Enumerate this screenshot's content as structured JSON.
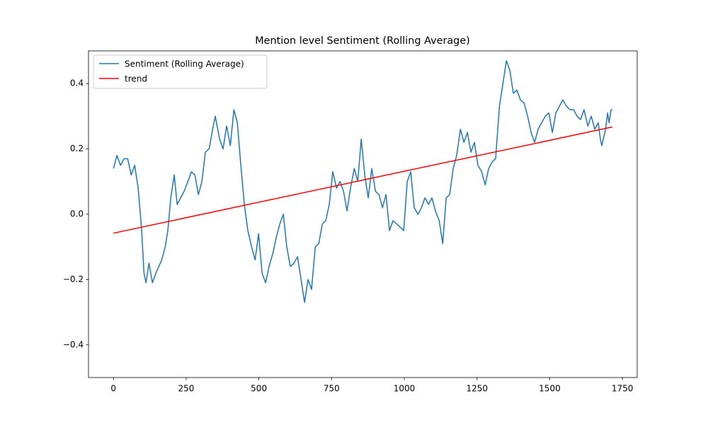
{
  "chart_data": {
    "type": "line",
    "title": "Mention level Sentiment (Rolling Average)",
    "series": [
      {
        "name": "Sentiment (Rolling Average)",
        "color": "#1f77b4",
        "x": [
          0,
          12,
          24,
          37,
          49,
          61,
          73,
          85,
          97,
          105,
          112,
          122,
          134,
          146,
          166,
          178,
          187,
          197,
          209,
          219,
          231,
          243,
          256,
          268,
          280,
          292,
          304,
          316,
          329,
          341,
          350,
          365,
          377,
          389,
          402,
          414,
          426,
          438,
          450,
          462,
          475,
          487,
          499,
          511,
          523,
          535,
          548,
          560,
          572,
          584,
          596,
          608,
          621,
          633,
          645,
          657,
          669,
          681,
          694,
          706,
          718,
          730,
          742,
          754,
          767,
          779,
          791,
          803,
          815,
          828,
          840,
          852,
          864,
          876,
          888,
          901,
          913,
          925,
          937,
          949,
          961,
          974,
          986,
          998,
          1010,
          1022,
          1034,
          1047,
          1059,
          1071,
          1083,
          1095,
          1107,
          1120,
          1132,
          1144,
          1156,
          1168,
          1180,
          1193,
          1205,
          1217,
          1229,
          1241,
          1253,
          1266,
          1278,
          1290,
          1302,
          1314,
          1327,
          1339,
          1351,
          1363,
          1375,
          1387,
          1399,
          1412,
          1424,
          1436,
          1448,
          1460,
          1472,
          1485,
          1497,
          1509,
          1521,
          1533,
          1545,
          1558,
          1570,
          1582,
          1594,
          1606,
          1618,
          1631,
          1643,
          1655,
          1667,
          1674,
          1679,
          1692,
          1699,
          1704,
          1711,
          1715
        ],
        "values": [
          0.14,
          0.18,
          0.15,
          0.17,
          0.17,
          0.12,
          0.15,
          0.08,
          -0.05,
          -0.18,
          -0.21,
          -0.15,
          -0.21,
          -0.18,
          -0.14,
          -0.1,
          -0.05,
          0.05,
          0.12,
          0.03,
          0.05,
          0.07,
          0.1,
          0.13,
          0.12,
          0.06,
          0.1,
          0.19,
          0.2,
          0.26,
          0.3,
          0.23,
          0.2,
          0.27,
          0.21,
          0.32,
          0.28,
          0.15,
          0.03,
          -0.05,
          -0.1,
          -0.14,
          -0.06,
          -0.18,
          -0.21,
          -0.16,
          -0.12,
          -0.07,
          -0.03,
          0.0,
          -0.1,
          -0.16,
          -0.15,
          -0.13,
          -0.2,
          -0.27,
          -0.2,
          -0.23,
          -0.1,
          -0.09,
          -0.03,
          -0.02,
          0.03,
          0.13,
          0.08,
          0.1,
          0.07,
          0.01,
          0.08,
          0.14,
          0.1,
          0.23,
          0.12,
          0.05,
          0.14,
          0.07,
          0.06,
          0.02,
          0.06,
          -0.05,
          -0.02,
          -0.03,
          -0.04,
          -0.05,
          0.1,
          0.13,
          0.02,
          0.0,
          0.02,
          0.05,
          0.03,
          0.05,
          0.01,
          -0.02,
          -0.09,
          0.05,
          0.06,
          0.14,
          0.18,
          0.26,
          0.22,
          0.25,
          0.19,
          0.22,
          0.15,
          0.13,
          0.09,
          0.14,
          0.16,
          0.17,
          0.33,
          0.4,
          0.47,
          0.44,
          0.37,
          0.38,
          0.35,
          0.34,
          0.3,
          0.25,
          0.22,
          0.26,
          0.28,
          0.3,
          0.31,
          0.25,
          0.31,
          0.33,
          0.35,
          0.33,
          0.32,
          0.32,
          0.3,
          0.29,
          0.32,
          0.27,
          0.3,
          0.26,
          0.28,
          0.23,
          0.21,
          0.26,
          0.31,
          0.28,
          0.32,
          0.32
        ]
      },
      {
        "name": "trend",
        "color": "#ff0000",
        "x": [
          0,
          1715
        ],
        "values": [
          -0.058,
          0.267
        ]
      }
    ],
    "xlim": [
      -85.75,
      1800.75
    ],
    "xticks": [
      0,
      250,
      500,
      750,
      1000,
      1250,
      1500,
      1750
    ],
    "ylim": [
      -0.5,
      0.5
    ],
    "yticks": [
      {
        "value": -0.4,
        "label": "−0.4"
      },
      {
        "value": -0.2,
        "label": "−0.2"
      },
      {
        "value": 0,
        "label": "0.0"
      },
      0.2,
      0.4
    ],
    "legend": "upper left"
  }
}
